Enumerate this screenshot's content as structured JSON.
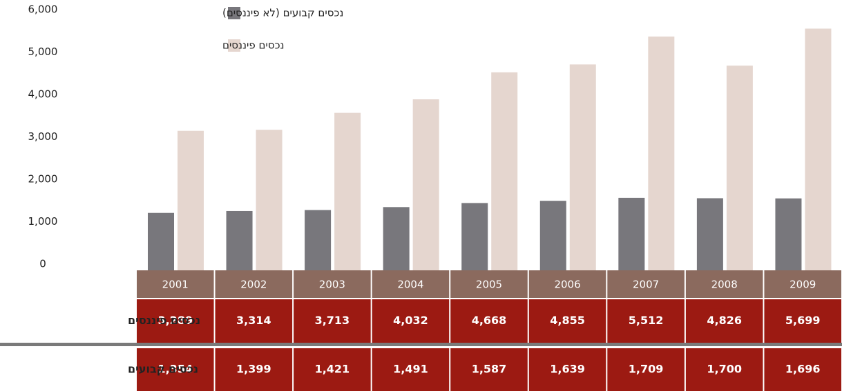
{
  "chart_data": {
    "type": "bar",
    "categories": [
      "2001",
      "2002",
      "2003",
      "2004",
      "2005",
      "2006",
      "2007",
      "2008",
      "2009"
    ],
    "series": [
      {
        "name": "נכסים קבועים (לא פיננסים)",
        "color": "#78777c",
        "values": [
          1354,
          1399,
          1421,
          1491,
          1587,
          1639,
          1709,
          1700,
          1696
        ],
        "value_labels": [
          "1,354",
          "1,399",
          "1,421",
          "1,491",
          "1,587",
          "1,639",
          "1,709",
          "1,700",
          "1,696"
        ]
      },
      {
        "name": "נכסים פיננסים",
        "color": "#e5d6cf",
        "values": [
          3289,
          3314,
          3713,
          4032,
          4668,
          4855,
          5512,
          4826,
          5699
        ],
        "value_labels": [
          "3,289",
          "3,314",
          "3,713",
          "4,032",
          "4,668",
          "4,855",
          "5,512",
          "4,826",
          "5,699"
        ]
      }
    ],
    "row_labels": [
      "נכסים פיננסים",
      "נכסים קבועים"
    ],
    "ylim": [
      0,
      6000
    ],
    "yticks": [
      0,
      {
        "value": 1000,
        "label": "1,000"
      },
      {
        "value": 2000,
        "label": "2,000"
      },
      {
        "value": 3000,
        "label": "3,000"
      },
      {
        "value": 4000,
        "label": "4,000"
      },
      {
        "value": 5000,
        "label": "5,000"
      },
      {
        "value": 6000,
        "label": "6,000"
      }
    ],
    "grid": false
  }
}
